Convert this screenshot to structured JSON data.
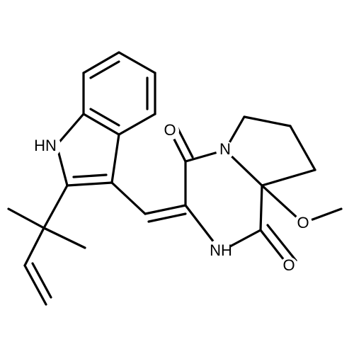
{
  "labels": [
    "HN",
    "O",
    "N",
    "O",
    "NH",
    "O"
  ]
}
